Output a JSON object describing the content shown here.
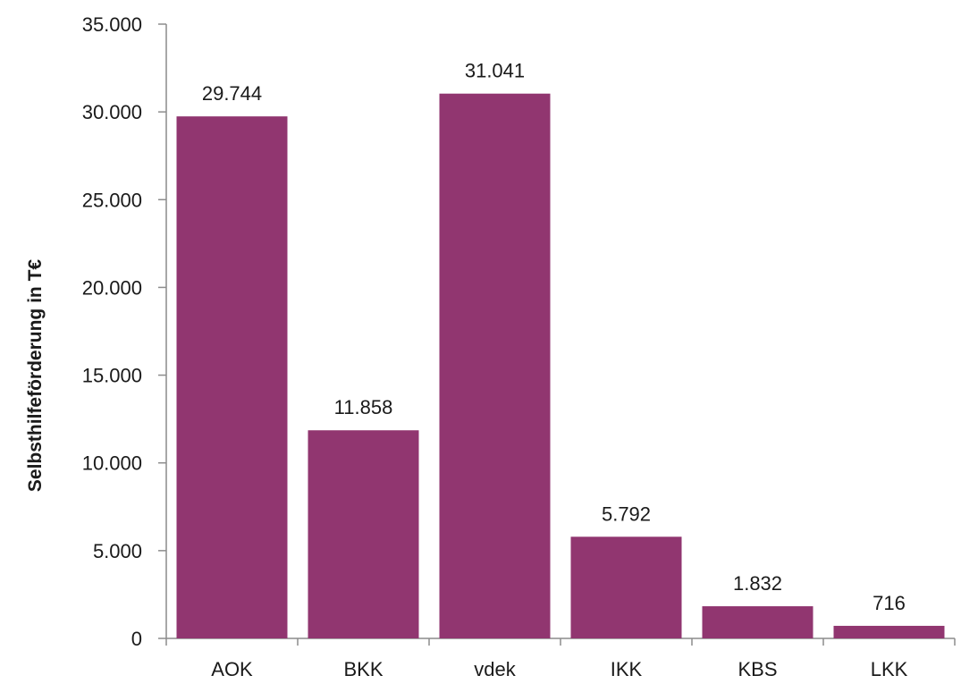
{
  "chart_data": {
    "type": "bar",
    "title": "",
    "xlabel": "",
    "ylabel": "Selbsthilfeförderung in T€",
    "categories": [
      "AOK",
      "BKK",
      "vdek",
      "IKK",
      "KBS",
      "LKK"
    ],
    "values": [
      29744,
      11858,
      31041,
      5792,
      1832,
      716
    ],
    "value_labels": [
      "29.744",
      "11.858",
      "31.041",
      "5.792",
      "1.832",
      "716"
    ],
    "ylim": [
      0,
      35000
    ],
    "yticks": [
      0,
      5000,
      10000,
      15000,
      20000,
      25000,
      30000,
      35000
    ],
    "ytick_labels": [
      "0",
      "5.000",
      "10.000",
      "15.000",
      "20.000",
      "25.000",
      "30.000",
      "35.000"
    ],
    "grid": false,
    "legend": "none",
    "bar_color": "#913670",
    "axis_color": "#8c8c8c"
  }
}
